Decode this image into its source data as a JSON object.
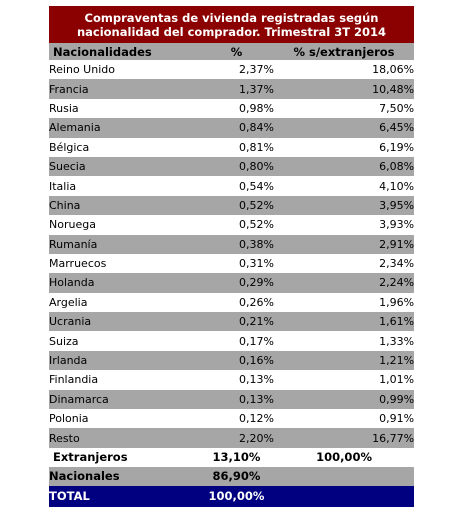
{
  "title": {
    "line1": "Compraventas de vivienda registradas según",
    "line2": "nacionalidad del comprador. Trimestral 3T 2014"
  },
  "header": {
    "nationality": "Nacionalidades",
    "pct": "%",
    "pct_foreign": "% s/extranjeros"
  },
  "rows": [
    {
      "name": "Reino Unido",
      "pct": "2,37%",
      "pct_foreign": "18,06%"
    },
    {
      "name": "Francia",
      "pct": "1,37%",
      "pct_foreign": "10,48%"
    },
    {
      "name": "Rusia",
      "pct": "0,98%",
      "pct_foreign": "7,50%"
    },
    {
      "name": "Alemania",
      "pct": "0,84%",
      "pct_foreign": "6,45%"
    },
    {
      "name": "Bélgica",
      "pct": "0,81%",
      "pct_foreign": "6,19%"
    },
    {
      "name": "Suecia",
      "pct": "0,80%",
      "pct_foreign": "6,08%"
    },
    {
      "name": "Italia",
      "pct": "0,54%",
      "pct_foreign": "4,10%"
    },
    {
      "name": "China",
      "pct": "0,52%",
      "pct_foreign": "3,95%"
    },
    {
      "name": "Noruega",
      "pct": "0,52%",
      "pct_foreign": "3,93%"
    },
    {
      "name": "Rumanía",
      "pct": "0,38%",
      "pct_foreign": "2,91%"
    },
    {
      "name": "Marruecos",
      "pct": "0,31%",
      "pct_foreign": "2,34%"
    },
    {
      "name": "Holanda",
      "pct": "0,29%",
      "pct_foreign": "2,24%"
    },
    {
      "name": "Argelia",
      "pct": "0,26%",
      "pct_foreign": "1,96%"
    },
    {
      "name": "Ucrania",
      "pct": "0,21%",
      "pct_foreign": "1,61%"
    },
    {
      "name": "Suiza",
      "pct": "0,17%",
      "pct_foreign": "1,33%"
    },
    {
      "name": "Irlanda",
      "pct": "0,16%",
      "pct_foreign": "1,21%"
    },
    {
      "name": "Finlandia",
      "pct": "0,13%",
      "pct_foreign": "1,01%"
    },
    {
      "name": "Dinamarca",
      "pct": "0,13%",
      "pct_foreign": "0,99%"
    },
    {
      "name": "Polonia",
      "pct": "0,12%",
      "pct_foreign": "0,91%"
    },
    {
      "name": "Resto",
      "pct": "2,20%",
      "pct_foreign": "16,77%"
    }
  ],
  "extranjeros": {
    "label": "Extranjeros",
    "pct": "13,10%",
    "pct_foreign": "100,00%"
  },
  "nacionales": {
    "label": "Nacionales",
    "pct": "86,90%"
  },
  "total": {
    "label": "TOTAL",
    "pct": "100,00%"
  }
}
